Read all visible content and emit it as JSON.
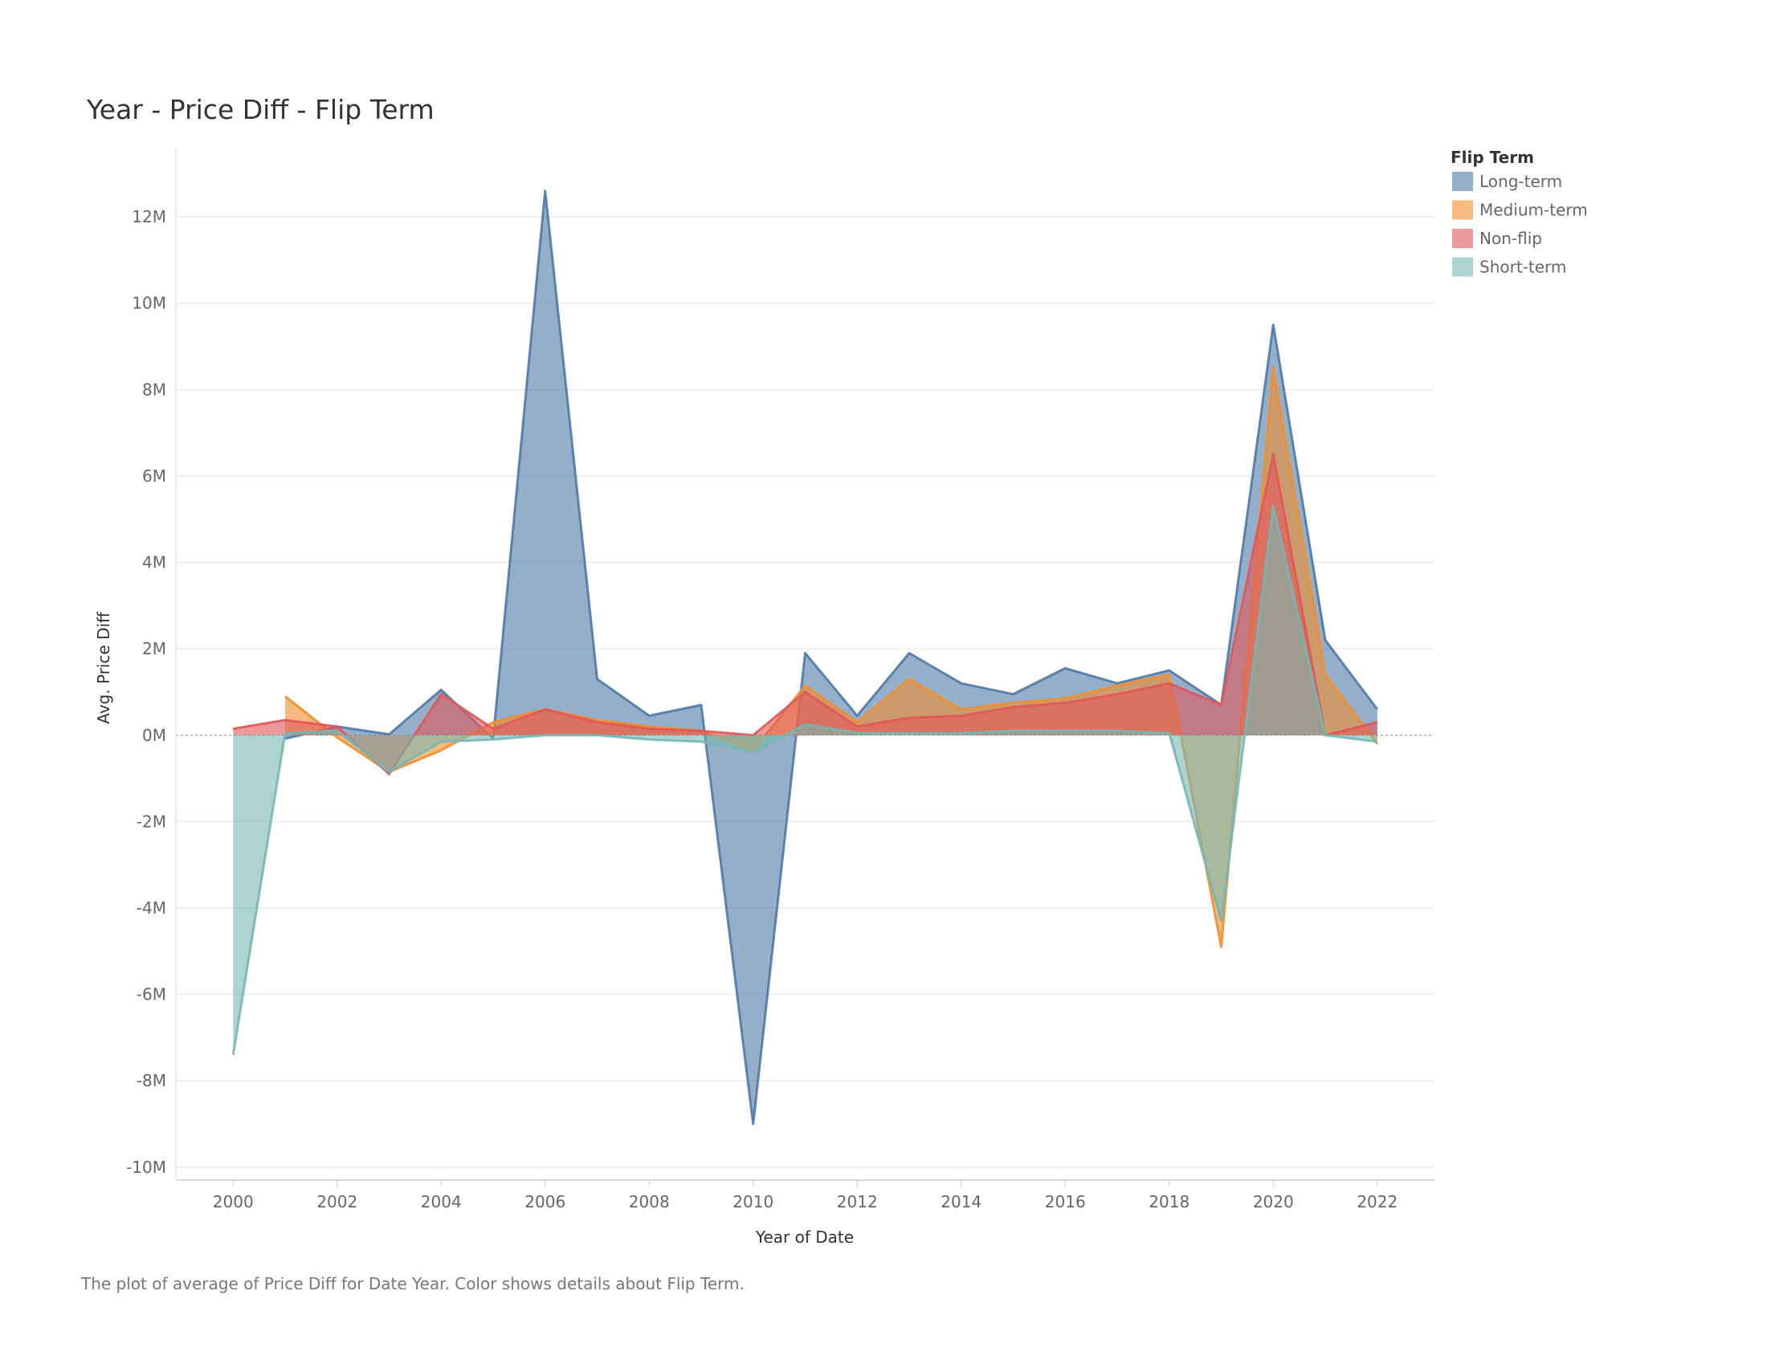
{
  "chart_data": {
    "type": "area",
    "title": "Year - Price Diff - Flip Term",
    "x_label": "Year of Date",
    "y_label": "Avg. Price Diff",
    "caption": "The plot of average of Price Diff for Date Year.  Color shows details about Flip Term.",
    "legend_title": "Flip Term",
    "legend_position": "right",
    "grid": true,
    "x": [
      2000,
      2001,
      2002,
      2003,
      2004,
      2005,
      2006,
      2007,
      2008,
      2009,
      2010,
      2011,
      2012,
      2013,
      2014,
      2015,
      2016,
      2017,
      2018,
      2019,
      2020,
      2021,
      2022
    ],
    "xlim": [
      1998.9,
      2023.1
    ],
    "xticks": [
      2000,
      2002,
      2004,
      2006,
      2008,
      2010,
      2012,
      2014,
      2016,
      2018,
      2020,
      2022
    ],
    "ylim": [
      -10300000,
      13600000
    ],
    "yticks": [
      {
        "value": -10000000,
        "label": "-10M"
      },
      {
        "value": -8000000,
        "label": "-8M"
      },
      {
        "value": -6000000,
        "label": "-6M"
      },
      {
        "value": -4000000,
        "label": "-4M"
      },
      {
        "value": -2000000,
        "label": "-2M"
      },
      {
        "value": 0,
        "label": "0M"
      },
      {
        "value": 2000000,
        "label": "2M"
      },
      {
        "value": 4000000,
        "label": "4M"
      },
      {
        "value": 6000000,
        "label": "6M"
      },
      {
        "value": 8000000,
        "label": "8M"
      },
      {
        "value": 10000000,
        "label": "10M"
      },
      {
        "value": 12000000,
        "label": "12M"
      }
    ],
    "series": [
      {
        "name": "Long-term",
        "color": "#4e79a7",
        "values": [
          null,
          -80000,
          200000,
          20000,
          1050000,
          -80000,
          12600000,
          1300000,
          450000,
          700000,
          -9000000,
          1900000,
          450000,
          1900000,
          1200000,
          950000,
          1550000,
          1200000,
          1500000,
          700000,
          9500000,
          2200000,
          600000
        ]
      },
      {
        "name": "Medium-term",
        "color": "#f28e2b",
        "values": [
          null,
          900000,
          -50000,
          -850000,
          -350000,
          300000,
          600000,
          350000,
          200000,
          100000,
          -350000,
          1150000,
          300000,
          1300000,
          600000,
          750000,
          850000,
          1150000,
          1400000,
          -4900000,
          8500000,
          1400000,
          -200000
        ]
      },
      {
        "name": "Non-flip",
        "color": "#e15759",
        "values": [
          150000,
          350000,
          200000,
          -900000,
          950000,
          150000,
          600000,
          300000,
          150000,
          100000,
          0,
          1000000,
          200000,
          400000,
          450000,
          650000,
          750000,
          950000,
          1200000,
          700000,
          6500000,
          0,
          300000
        ]
      },
      {
        "name": "Short-term",
        "color": "#76b7b2",
        "values": [
          -7400000,
          50000,
          100000,
          -850000,
          -150000,
          -100000,
          0,
          0,
          -100000,
          -150000,
          -400000,
          250000,
          50000,
          50000,
          50000,
          100000,
          100000,
          100000,
          50000,
          -4300000,
          5300000,
          0,
          -150000
        ]
      }
    ]
  }
}
